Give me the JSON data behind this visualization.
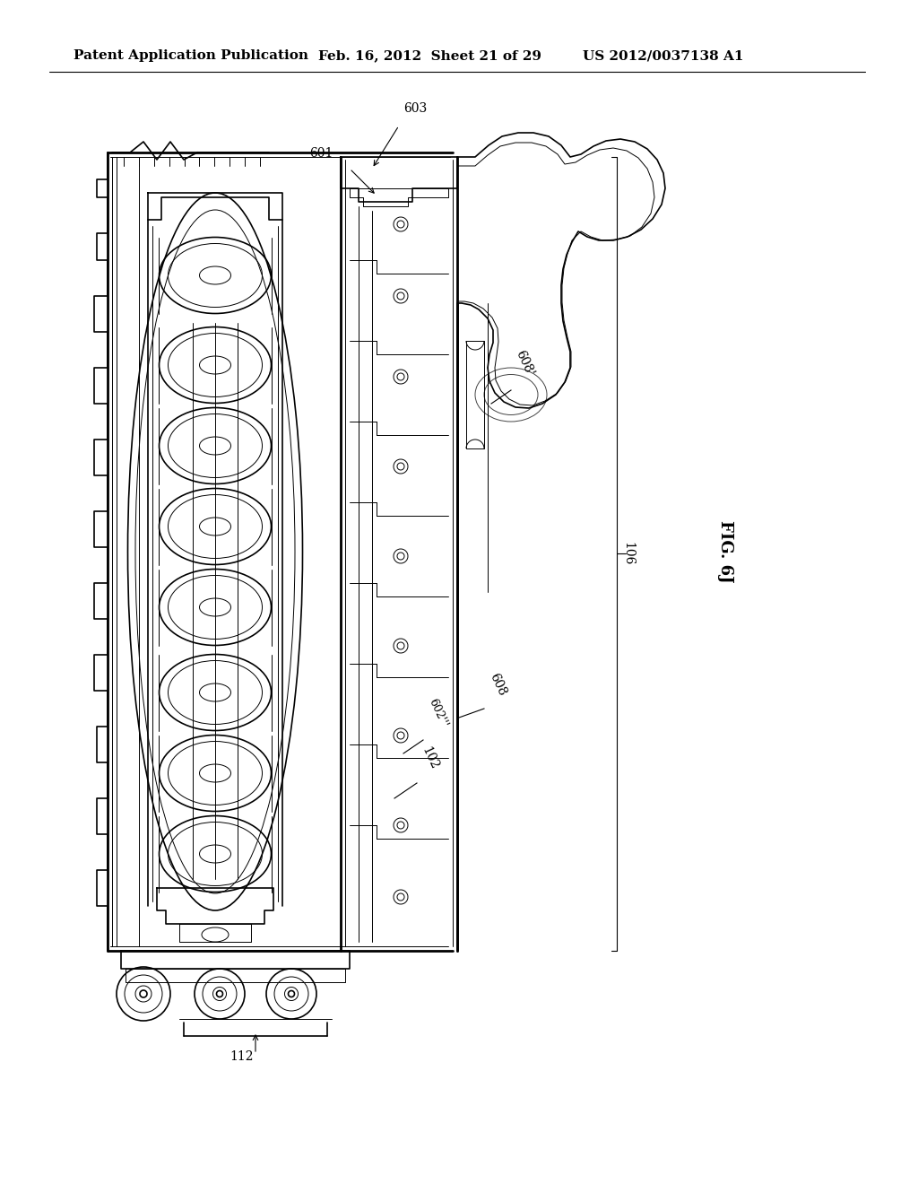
{
  "title_left": "Patent Application Publication",
  "title_mid": "Feb. 16, 2012  Sheet 21 of 29",
  "title_right": "US 2012/0037138 A1",
  "fig_label": "FIG. 6J",
  "background_color": "#ffffff",
  "line_color": "#000000",
  "header_fontsize": 11,
  "label_fontsize": 10,
  "fig_label_fontsize": 13
}
